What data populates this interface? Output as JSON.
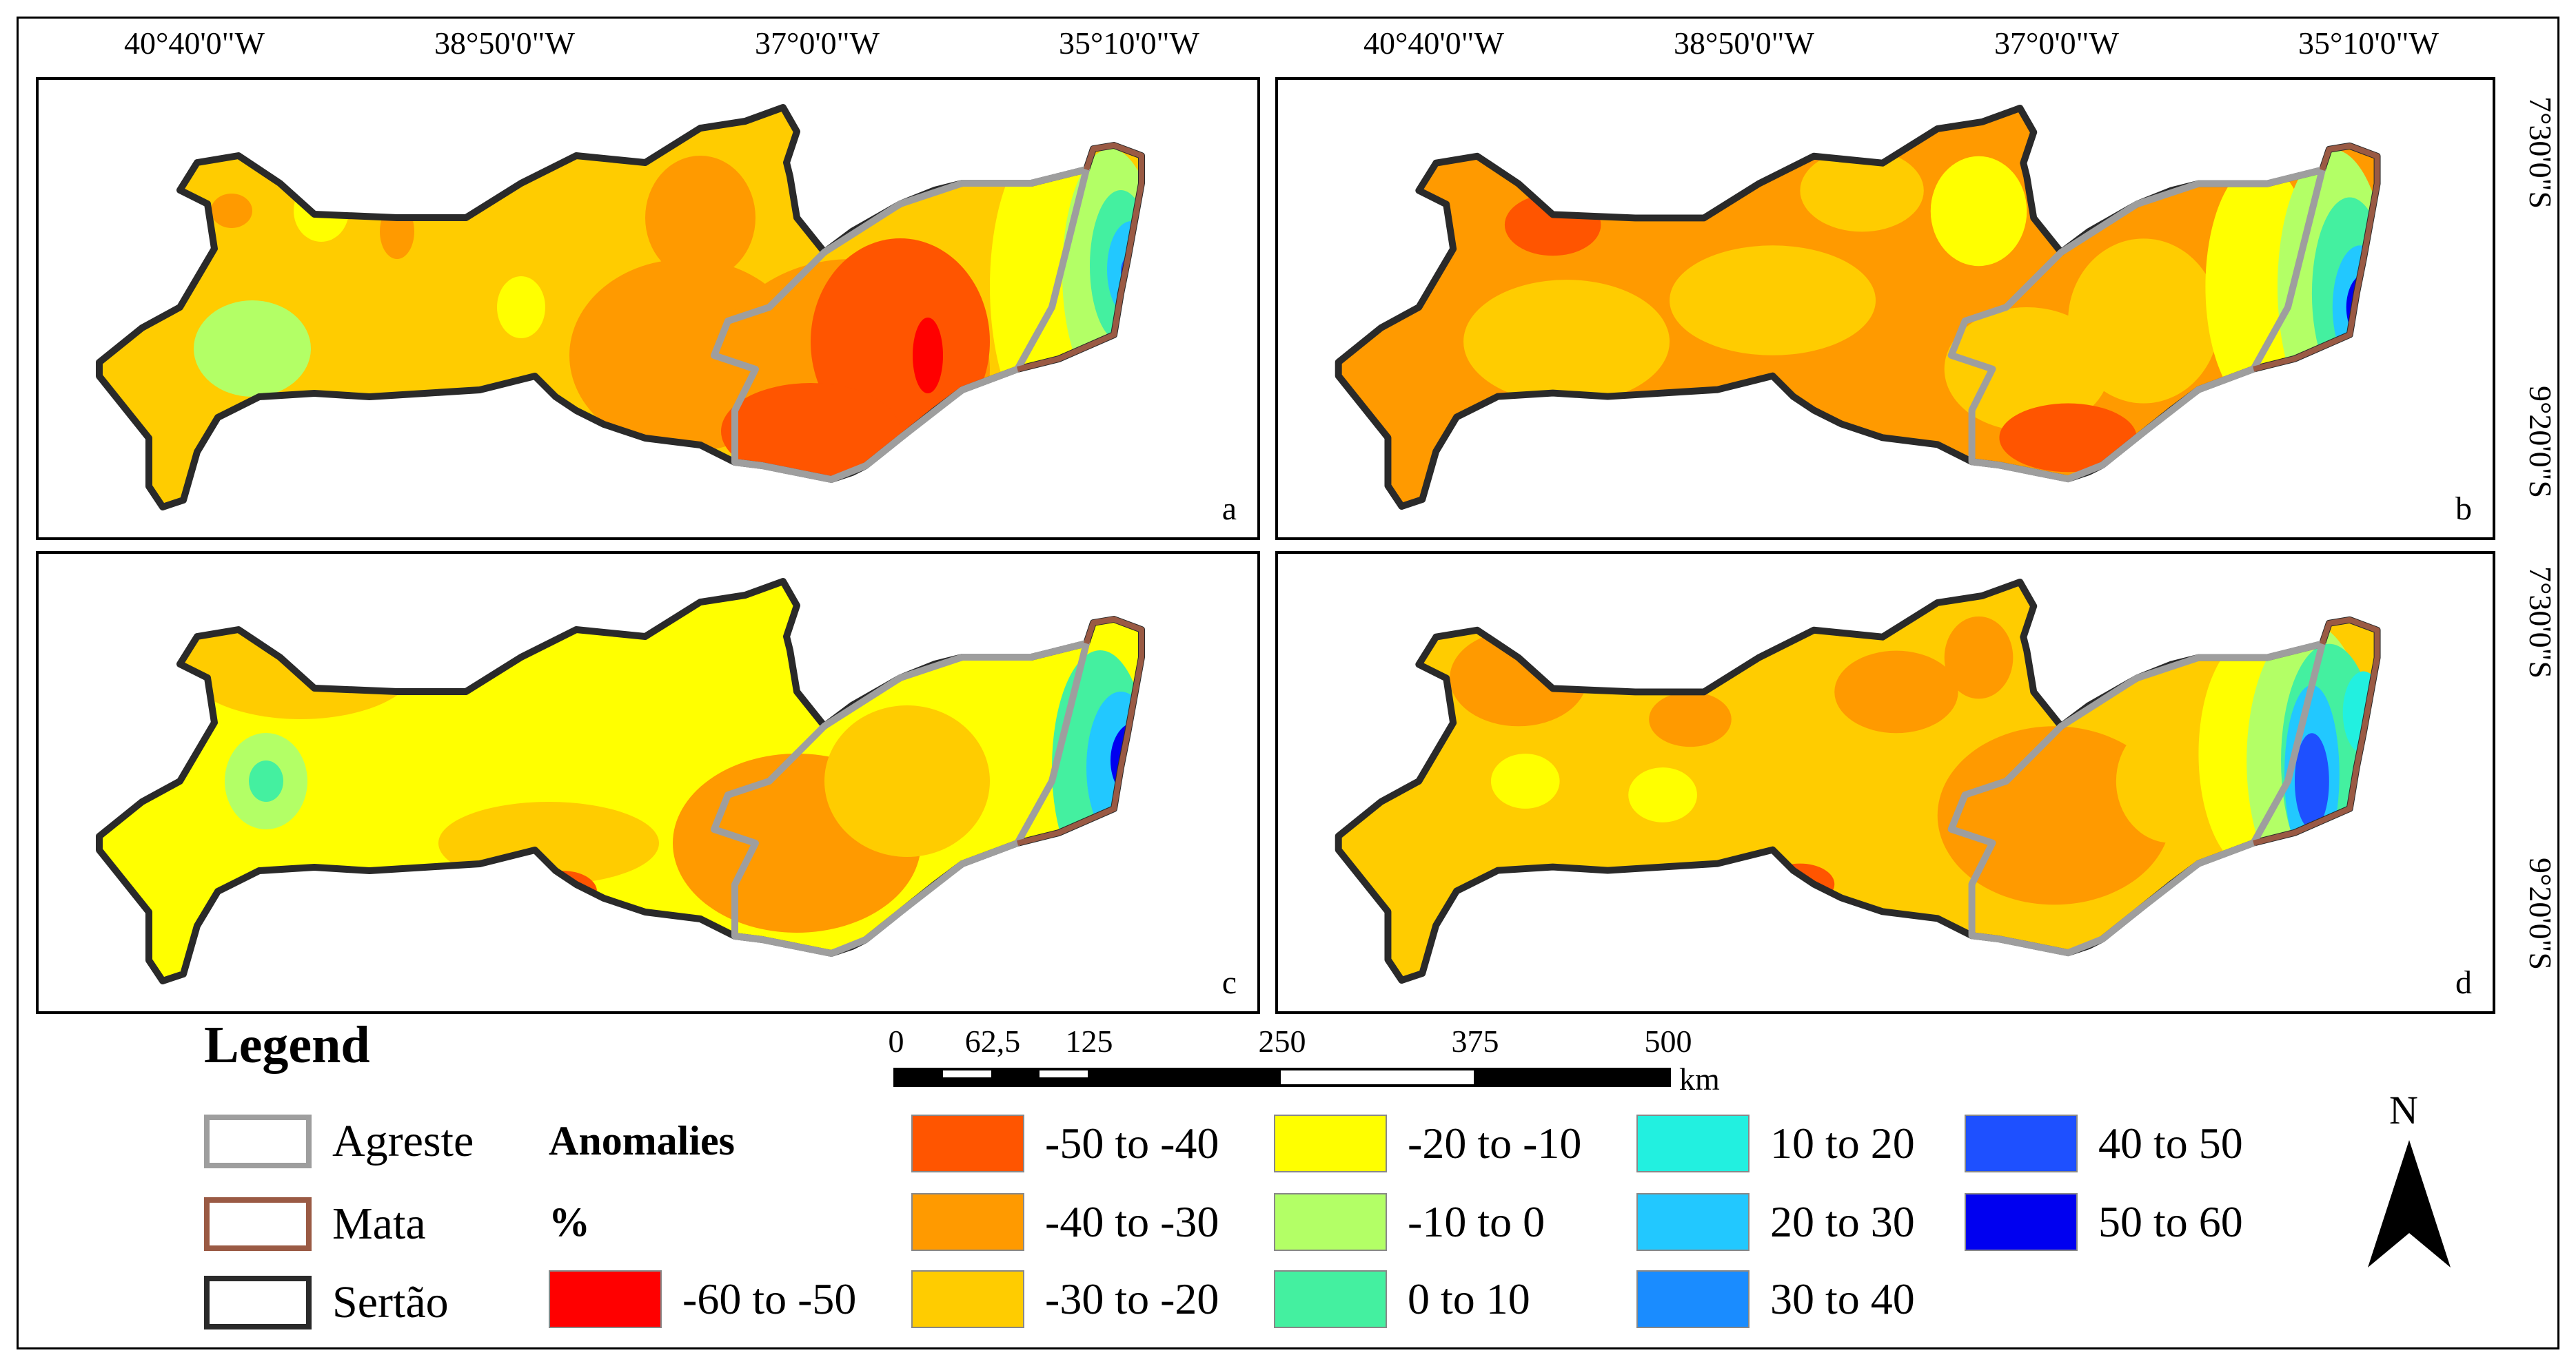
{
  "figure": {
    "panels": [
      {
        "id": "a",
        "label": "a"
      },
      {
        "id": "b",
        "label": "b"
      },
      {
        "id": "c",
        "label": "c"
      },
      {
        "id": "d",
        "label": "d"
      }
    ],
    "lon_labels": [
      "40°40'0\"W",
      "38°50'0\"W",
      "37°0'0\"W",
      "35°10'0\"W"
    ],
    "lat_labels": [
      "7°30'0\"S",
      "9°20'0\"S"
    ]
  },
  "legend": {
    "title": "Legend",
    "boundaries": [
      {
        "name": "Agreste",
        "color": "#9e9e9e"
      },
      {
        "name": "Mata",
        "color": "#9a5a44"
      },
      {
        "name": "Sertão",
        "color": "#2a2a2a"
      }
    ],
    "anomalies_title": "Anomalies",
    "anomalies_unit": "%",
    "classes": [
      {
        "label": "-60 to -50",
        "color": "#ff0000"
      },
      {
        "label": "-50 to -40",
        "color": "#ff5500"
      },
      {
        "label": "-40 to -30",
        "color": "#ff9a00"
      },
      {
        "label": "-30 to -20",
        "color": "#ffcc00"
      },
      {
        "label": "-20 to -10",
        "color": "#ffff00"
      },
      {
        "label": "-10 to 0",
        "color": "#b3ff66"
      },
      {
        "label": "0 to 10",
        "color": "#44f0a0"
      },
      {
        "label": "10 to 20",
        "color": "#22f0e0"
      },
      {
        "label": "20 to 30",
        "color": "#22c8ff"
      },
      {
        "label": "30 to 40",
        "color": "#1a8cff"
      },
      {
        "label": "40 to 50",
        "color": "#1e50ff"
      },
      {
        "label": "50 to 60",
        "color": "#0000f0"
      }
    ]
  },
  "scale_bar": {
    "ticks": [
      "0",
      "62,5",
      "125",
      "250",
      "375",
      "500"
    ],
    "unit": "km"
  },
  "north_arrow": {
    "label": "N"
  }
}
